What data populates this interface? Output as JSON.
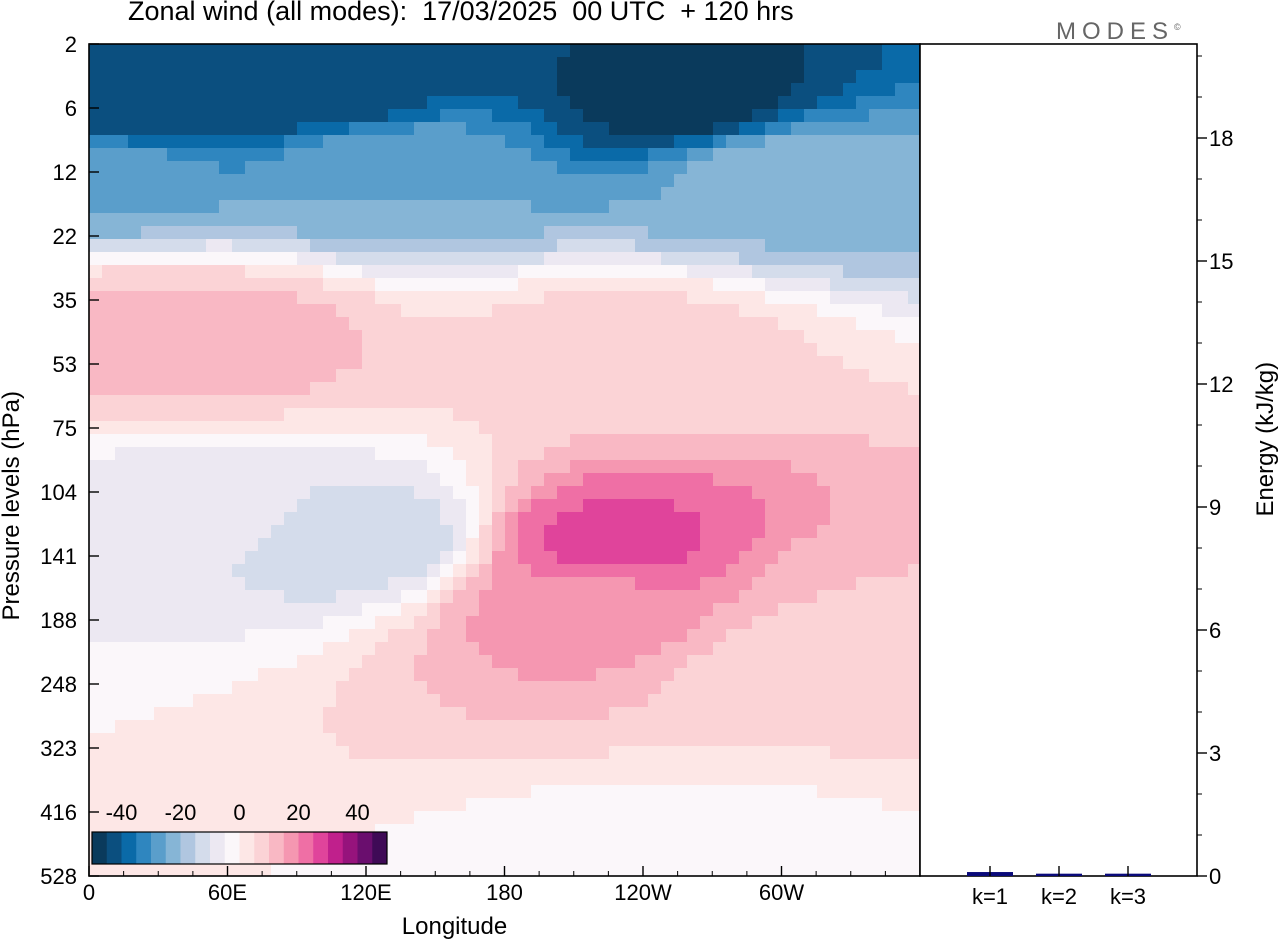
{
  "title": "Zonal wind (all modes):  17/03/2025  00 UTC  + 120 hrs",
  "brand": "MODES",
  "brand_mark": "©",
  "colors": {
    "scale": [
      "#0a3a5c",
      "#0b4f7f",
      "#0a6aa8",
      "#2f86bf",
      "#5a9ecb",
      "#86b5d6",
      "#b0c6e0",
      "#d4dceb",
      "#ece8f2",
      "#fbf7fa",
      "#fde7e6",
      "#fbd3d6",
      "#f9b8c4",
      "#f597b1",
      "#ef6fa5",
      "#e0449b",
      "#c0208c",
      "#96137c",
      "#6a0e6e",
      "#3f0a56"
    ]
  },
  "chart_data": [
    {
      "type": "heatmap",
      "title": "Zonal wind (all modes):  17/03/2025  00 UTC  + 120 hrs",
      "xlabel": "Longitude",
      "ylabel": "Pressure levels (hPa)",
      "x_ticks": [
        "0",
        "60E",
        "120E",
        "180",
        "120W",
        "60W"
      ],
      "x_range_deg_east": [
        0,
        360
      ],
      "y_ticks": [
        "2",
        "6",
        "12",
        "22",
        "35",
        "53",
        "75",
        "104",
        "141",
        "188",
        "248",
        "323",
        "416",
        "528"
      ],
      "y_axis_direction": "pressure increases downward",
      "colorbar": {
        "ticks": [
          "-40",
          "-20",
          "0",
          "20",
          "40"
        ],
        "range": [
          -50,
          50
        ],
        "placement": "bottom-left, inside plot"
      },
      "features": [
        {
          "lon": 20,
          "level": "6",
          "value": -45
        },
        {
          "lon": 100,
          "level": "4",
          "value": -45
        },
        {
          "lon": 260,
          "level": "5",
          "value": -48
        },
        {
          "lon": 5,
          "level": "12",
          "value": -25
        },
        {
          "lon": 130,
          "level": "12",
          "value": -25
        },
        {
          "lon": 300,
          "level": "12",
          "value": -22
        },
        {
          "lon": 60,
          "level": "45",
          "value": 12
        },
        {
          "lon": 10,
          "level": "45",
          "value": 12
        },
        {
          "lon": 230,
          "level": "50",
          "value": 8
        },
        {
          "lon": 120,
          "level": "130",
          "value": -14
        },
        {
          "lon": 50,
          "level": "110",
          "value": -8
        },
        {
          "lon": 225,
          "level": "135",
          "value": 27
        },
        {
          "lon": 215,
          "level": "170",
          "value": 18
        },
        {
          "lon": 340,
          "level": "180",
          "value": 10
        },
        {
          "lon": 325,
          "level": "230",
          "value": 5
        },
        {
          "lon": 265,
          "level": "530",
          "value": -4
        }
      ]
    },
    {
      "type": "bar",
      "categories": [
        "k=1",
        "k=2",
        "k=3"
      ],
      "values": [
        0.06,
        0.02,
        0.02
      ],
      "ylabel": "Energy (kJ/kg)",
      "ylim": [
        0,
        20
      ],
      "y_ticks": [
        0,
        3,
        6,
        9,
        12,
        15,
        18
      ]
    }
  ]
}
